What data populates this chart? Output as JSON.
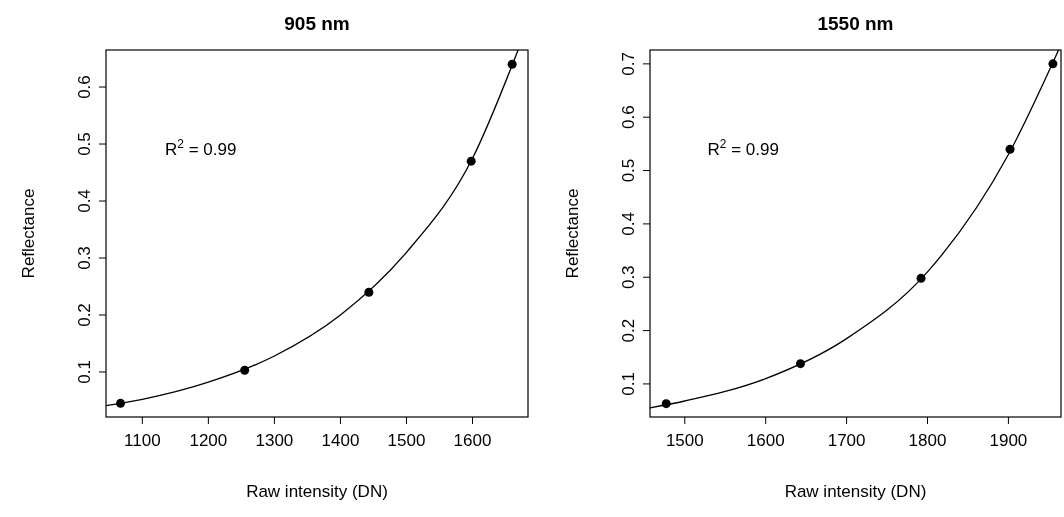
{
  "chart_data": [
    {
      "type": "scatter",
      "title": "905 nm",
      "xlabel": "Raw intensity (DN)",
      "ylabel": "Reflectance",
      "xlim": [
        1045,
        1684
      ],
      "ylim": [
        0.021,
        0.665
      ],
      "xticks": [
        1100,
        1200,
        1300,
        1400,
        1500,
        1600
      ],
      "yticks": [
        0.1,
        0.2,
        0.3,
        0.4,
        0.5,
        0.6
      ],
      "annotations": [
        "R$^{2}$ = 0.99"
      ],
      "series": [
        {
          "color": "#000000",
          "marker": "circle",
          "x": [
            1067,
            1255,
            1443,
            1598,
            1660
          ],
          "values": [
            0.045,
            0.103,
            0.24,
            0.47,
            0.64
          ]
        },
        {
          "type": "line",
          "color": "#000000",
          "marker": "none",
          "x": [
            1045,
            1100,
            1200,
            1300,
            1400,
            1500,
            1600,
            1669
          ],
          "values": [
            0.041,
            0.052,
            0.082,
            0.128,
            0.2,
            0.31,
            0.475,
            0.665
          ]
        }
      ]
    },
    {
      "type": "scatter",
      "title": "1550 nm",
      "xlabel": "Raw intensity (DN)",
      "ylabel": "Reflectance",
      "xlim": [
        1457,
        1965
      ],
      "ylim": [
        0.038,
        0.726
      ],
      "xticks": [
        1500,
        1600,
        1700,
        1800,
        1900
      ],
      "yticks": [
        0.1,
        0.2,
        0.3,
        0.4,
        0.5,
        0.6,
        0.7
      ],
      "annotations": [
        "R$^{2}$ = 0.99"
      ],
      "series": [
        {
          "color": "#000000",
          "marker": "circle",
          "x": [
            1477,
            1643,
            1792,
            1902,
            1955
          ],
          "values": [
            0.063,
            0.138,
            0.298,
            0.54,
            0.7
          ]
        },
        {
          "type": "line",
          "color": "#000000",
          "marker": "none",
          "x": [
            1457,
            1500,
            1600,
            1700,
            1800,
            1900,
            1962
          ],
          "values": [
            0.055,
            0.068,
            0.11,
            0.185,
            0.31,
            0.53,
            0.726
          ]
        }
      ]
    }
  ]
}
